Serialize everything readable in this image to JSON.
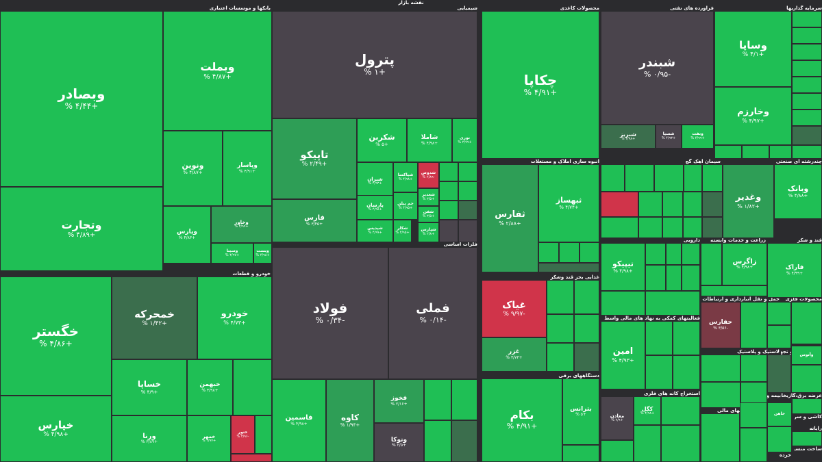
{
  "chart_data": {
    "type": "treemap",
    "title": "نقشه بازار",
    "colors": {
      "up_strong": "#1fbf55",
      "up_mid": "#2e9e56",
      "up_weak": "#3b6e4d",
      "neutral": "#4a444c",
      "down_weak": "#7a3a45",
      "down": "#d0344a"
    },
    "sectors": [
      {
        "name": "بانکها و موسسات اعتباری"
      },
      {
        "name": "شیمیایی"
      },
      {
        "name": "محصولات کاغذی"
      },
      {
        "name": "فرآورده های نفتی"
      },
      {
        "name": "سرمایه گذاریها"
      },
      {
        "name": "خودرو و قطعات"
      },
      {
        "name": "انبوه سازی املاک و مستغلات"
      },
      {
        "name": "سیمان آهک گچ"
      },
      {
        "name": "چندرشته ای صنعتی"
      },
      {
        "name": "فلزات اساسی"
      },
      {
        "name": "دارویی"
      },
      {
        "name": "زراعت و خدمات وابسته"
      },
      {
        "name": "قند و شکر"
      },
      {
        "name": "غذایی بجز قند وشکر"
      },
      {
        "name": "حمل و نقل انبارداری و ارتباطات"
      },
      {
        "name": "محصولات فلزی"
      },
      {
        "name": "فعالیتهای کمکی به نهاد های مالی واسط"
      },
      {
        "name": "لاستیک و پلاستیک"
      },
      {
        "name": "ماشین آلات و تجهیزات"
      },
      {
        "name": "دستگاههای برقی"
      },
      {
        "name": "استخراج کانه های فلزی"
      },
      {
        "name": "واسطه گریهای مالی"
      },
      {
        "name": "بیمه و بازنشستگی"
      },
      {
        "name": "عرضه برق،گازبخار"
      },
      {
        "name": "کانی غیر فلزی"
      },
      {
        "name": "کاشی و سرامیک"
      },
      {
        "name": "رایانه"
      },
      {
        "name": "ساخت منسوج"
      },
      {
        "name": "خرده"
      }
    ],
    "tiles": [
      {
        "name": "وبصادر",
        "change": "+۴/۴۴ %",
        "color": "up_strong"
      },
      {
        "name": "وبملت",
        "change": "+۴/۸۷ %",
        "color": "up_strong"
      },
      {
        "name": "وتجارت",
        "change": "+۴/۸۹ %",
        "color": "up_strong"
      },
      {
        "name": "ونوین",
        "change": "+۴/۸۷ %",
        "color": "up_strong"
      },
      {
        "name": "وپاسار",
        "change": "+۴/۹۱ %",
        "color": "up_strong"
      },
      {
        "name": "وپارس",
        "change": "+۴/۸۳ %",
        "color": "up_strong"
      },
      {
        "name": "وخاور",
        "change": "+۴/۹۹ %",
        "color": "up_mid"
      },
      {
        "name": "وسینا",
        "change": "+۴/۹۷ %",
        "color": "up_strong"
      },
      {
        "name": "وبست",
        "change": "+۴/۹۸ %",
        "color": "up_strong"
      },
      {
        "name": "پترول",
        "change": "+۱ %",
        "color": "neutral"
      },
      {
        "name": "تاپیکو",
        "change": "+۲/۴۹ %",
        "color": "up_mid"
      },
      {
        "name": "فارس",
        "change": "+۳/۴۵ %",
        "color": "up_mid"
      },
      {
        "name": "شکربن",
        "change": "+۵ %",
        "color": "up_strong"
      },
      {
        "name": "شاملا",
        "change": "+۴/۹۸ %",
        "color": "up_strong"
      },
      {
        "name": "نوری",
        "change": "+۲/۹۹ %",
        "color": "up_strong"
      },
      {
        "name": "شیران",
        "change": "+۴/۹۳ %",
        "color": "up_strong"
      },
      {
        "name": "پارسان",
        "change": "+۴/۹۸ %",
        "color": "up_strong"
      },
      {
        "name": "شپدیس",
        "change": "+۴/۹۹ %",
        "color": "up_strong"
      },
      {
        "name": "شکلر",
        "change": "+۴/۹۵ %",
        "color": "up_strong"
      },
      {
        "name": "شپاکسا",
        "change": "+۴/۹۸ %",
        "color": "up_strong"
      },
      {
        "name": "جم پیلن",
        "change": "+۴/۹۵ %",
        "color": "up_strong"
      },
      {
        "name": "شدوص",
        "change": "-۲/۸۹ %",
        "color": "down"
      },
      {
        "name": "شغدیر",
        "change": "+۳/۵ %",
        "color": "up_strong"
      },
      {
        "name": "شفن",
        "change": "+۳/۵ %",
        "color": "up_strong"
      },
      {
        "name": "شپارس",
        "change": "+۲/۸ %",
        "color": "up_strong"
      },
      {
        "name": "چکاپا",
        "change": "+۴/۹۱ %",
        "color": "up_strong"
      },
      {
        "name": "شبندر",
        "change": "-۰/۹۵ %",
        "color": "neutral"
      },
      {
        "name": "شبریز",
        "change": "+۴/۹۸ %",
        "color": "up_weak"
      },
      {
        "name": "شسپا",
        "change": "+۴/۹۳ %",
        "color": "neutral"
      },
      {
        "name": "ونفت",
        "change": "+۴/۹۹ %",
        "color": "up_strong"
      },
      {
        "name": "وساپا",
        "change": "+۴/۱ %",
        "color": "up_strong"
      },
      {
        "name": "وخارزم",
        "change": "+۴/۹۷ %",
        "color": "up_strong"
      },
      {
        "name": "خگستر",
        "change": "+۴/۸۶ %",
        "color": "up_strong"
      },
      {
        "name": "خمحرکه",
        "change": "+۱/۴۲ %",
        "color": "up_weak"
      },
      {
        "name": "خودرو",
        "change": "+۴/۷۳ %",
        "color": "up_strong"
      },
      {
        "name": "خپارس",
        "change": "+۴/۹۸ %",
        "color": "up_strong"
      },
      {
        "name": "خساپا",
        "change": "+۴/۹ %",
        "color": "up_strong"
      },
      {
        "name": "خبهمن",
        "change": "+۴/۹۸ %",
        "color": "up_strong"
      },
      {
        "name": "ورنا",
        "change": "+۳/۸۹ %",
        "color": "up_strong"
      },
      {
        "name": "خمهر",
        "change": "+۴/۹۷ %",
        "color": "up_strong"
      },
      {
        "name": "خنور",
        "change": "-۴/۹۶ %",
        "color": "down"
      },
      {
        "name": "فولاد",
        "change": "-۰/۳۴ %",
        "color": "neutral"
      },
      {
        "name": "فملی",
        "change": "-۰/۱۴ %",
        "color": "neutral"
      },
      {
        "name": "فاسمین",
        "change": "+۴/۹۸ %",
        "color": "up_strong"
      },
      {
        "name": "کاوه",
        "change": "+۱/۹۴ %",
        "color": "up_mid"
      },
      {
        "name": "فخوز",
        "change": "+۲/۱۶ %",
        "color": "up_mid"
      },
      {
        "name": "ونوکا",
        "change": "+۲/۵ %",
        "color": "neutral"
      },
      {
        "name": "ثفارس",
        "change": "+۲/۸۸ %",
        "color": "up_mid"
      },
      {
        "name": "ثبهساز",
        "change": "+۴/۷۴ %",
        "color": "up_strong"
      },
      {
        "name": "غیاک",
        "change": "-۹/۹۷ %",
        "color": "down"
      },
      {
        "name": "غزر",
        "change": "+۳/۷۳ %",
        "color": "up_mid"
      },
      {
        "name": "بکام",
        "change": "+۴/۹۱ %",
        "color": "up_strong"
      },
      {
        "name": "بترانس",
        "change": "+۵ %",
        "color": "up_strong"
      },
      {
        "name": "وغدیر",
        "change": "+۱/۸۲ %",
        "color": "up_mid"
      },
      {
        "name": "وبانک",
        "change": "+۴/۸۸ %",
        "color": "up_strong"
      },
      {
        "name": "تیپیکو",
        "change": "+۴/۹۸ %",
        "color": "up_strong"
      },
      {
        "name": "زاگرس",
        "change": "+۴/۹۸ %",
        "color": "up_strong"
      },
      {
        "name": "فاراک",
        "change": "+۴/۹۹ %",
        "color": "up_strong"
      },
      {
        "name": "حفارس",
        "change": "-۳/۵۶ %",
        "color": "down_weak"
      },
      {
        "name": "امین",
        "change": "+۴/۹۳ %",
        "color": "up_strong"
      },
      {
        "name": "معادن",
        "change": "+۲/۹ %",
        "color": "neutral"
      },
      {
        "name": "کگل",
        "change": "+۴/۹۸ %",
        "color": "up_strong"
      },
      {
        "name": "وآتوس",
        "change": "",
        "color": "up_strong"
      },
      {
        "name": "خاهن",
        "change": "",
        "color": "up_strong"
      }
    ]
  }
}
